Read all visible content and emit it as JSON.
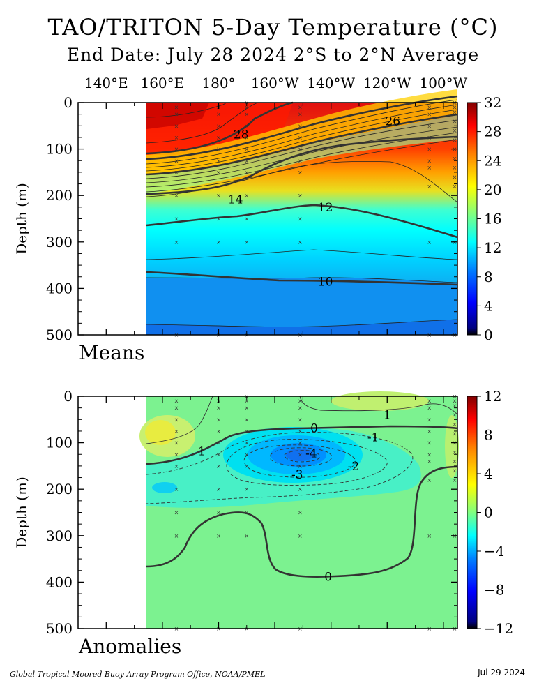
{
  "title": "TAO/TRITON 5-Day Temperature (°C)",
  "subtitle": "End Date: July 28 2024   2°S to 2°N Average",
  "footer_left": "Global Tropical Moored Buoy Array Program Office, NOAA/PMEL",
  "footer_right": "Jul 29 2024",
  "chart_data": [
    {
      "type": "heatmap",
      "panel": "Means",
      "ylabel": "Depth (m)",
      "x_ticks": [
        "140°E",
        "160°E",
        "180°",
        "160°W",
        "140°W",
        "120°W",
        "100°W"
      ],
      "x_tick_values": [
        140,
        160,
        180,
        200,
        220,
        240,
        260
      ],
      "xlim": [
        130,
        265
      ],
      "y_ticks": [
        0,
        100,
        200,
        300,
        400,
        500
      ],
      "ylim": [
        0,
        500
      ],
      "colorbar_ticks": [
        0,
        4,
        8,
        12,
        16,
        20,
        24,
        28,
        32
      ],
      "colorbar_range": [
        0,
        32
      ],
      "contour_labels": [
        {
          "text": "28",
          "lon": 188,
          "depth": 68
        },
        {
          "text": "26",
          "lon": 242,
          "depth": 40
        },
        {
          "text": "14",
          "lon": 186,
          "depth": 208
        },
        {
          "text": "12",
          "lon": 218,
          "depth": 225
        },
        {
          "text": "10",
          "lon": 218,
          "depth": 385
        }
      ],
      "isotherms": [
        {
          "value": 28,
          "points": [
            [
              160,
              110
            ],
            [
              180,
              100
            ],
            [
              192,
              80
            ],
            [
              202,
              30
            ],
            [
              206,
              0
            ]
          ]
        },
        {
          "value": 26,
          "points": [
            [
              160,
              122
            ],
            [
              180,
              112
            ],
            [
              200,
              88
            ],
            [
              220,
              68
            ],
            [
              245,
              30
            ],
            [
              260,
              5
            ]
          ]
        },
        {
          "value": 20,
          "points": [
            [
              160,
              150
            ],
            [
              180,
              140
            ],
            [
              200,
              120
            ],
            [
              220,
              100
            ],
            [
              245,
              72
            ],
            [
              265,
              60
            ]
          ]
        },
        {
          "value": 14,
          "points": [
            [
              160,
              195
            ],
            [
              180,
              185
            ],
            [
              195,
              170
            ],
            [
              210,
              140
            ],
            [
              230,
              110
            ],
            [
              250,
              90
            ],
            [
              265,
              75
            ]
          ]
        },
        {
          "value": 12,
          "points": [
            [
              160,
              265
            ],
            [
              180,
              255
            ],
            [
              200,
              245
            ],
            [
              218,
              228
            ],
            [
              240,
              250
            ],
            [
              265,
              290
            ]
          ]
        },
        {
          "value": 10,
          "points": [
            [
              160,
              380
            ],
            [
              190,
              390
            ],
            [
              215,
              382
            ],
            [
              240,
              387
            ],
            [
              265,
              390
            ]
          ]
        }
      ]
    },
    {
      "type": "heatmap",
      "panel": "Anomalies",
      "ylabel": "Depth (m)",
      "x_ticks": [
        "140°E",
        "160°E",
        "180°",
        "160°W",
        "140°W",
        "120°W",
        "100°W"
      ],
      "x_tick_values": [
        140,
        160,
        180,
        200,
        220,
        240,
        260
      ],
      "xlim": [
        130,
        265
      ],
      "y_ticks": [
        0,
        100,
        200,
        300,
        400,
        500
      ],
      "ylim": [
        0,
        500
      ],
      "colorbar_ticks": [
        -12,
        -8,
        -4,
        0,
        4,
        8,
        12
      ],
      "colorbar_range": [
        -12,
        12
      ],
      "contour_labels": [
        {
          "text": "1",
          "lon": 240,
          "depth": 40
        },
        {
          "text": "0",
          "lon": 214,
          "depth": 68
        },
        {
          "text": "-1",
          "lon": 235,
          "depth": 88
        },
        {
          "text": "1",
          "lon": 174,
          "depth": 118
        },
        {
          "text": "-4",
          "lon": 213,
          "depth": 122
        },
        {
          "text": "-2",
          "lon": 228,
          "depth": 150
        },
        {
          "text": "-3",
          "lon": 208,
          "depth": 168
        },
        {
          "text": "0",
          "lon": 219,
          "depth": 388
        }
      ]
    }
  ]
}
